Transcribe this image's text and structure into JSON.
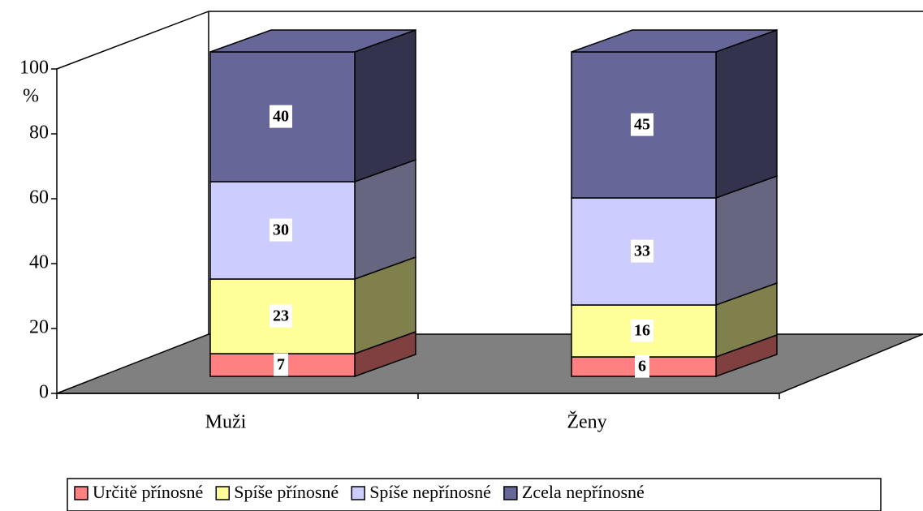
{
  "chart_data": {
    "type": "bar3d_stacked",
    "axis_label": "%",
    "categories": [
      "Muži",
      "Ženy"
    ],
    "series": [
      {
        "name": "Určitě přínosné",
        "color": "#ff8080",
        "values": [
          7,
          6
        ]
      },
      {
        "name": "Spíše přínosné",
        "color": "#ffff99",
        "values": [
          23,
          16
        ]
      },
      {
        "name": "Spíše nepřínosné",
        "color": "#ccccff",
        "values": [
          30,
          33
        ]
      },
      {
        "name": "Zcela nepřínosné",
        "color": "#666699",
        "values": [
          40,
          45
        ]
      }
    ],
    "ylim": [
      0,
      100
    ],
    "yticks": [
      0,
      20,
      40,
      60,
      80,
      100
    ],
    "grid": false,
    "legend": "bottom"
  }
}
